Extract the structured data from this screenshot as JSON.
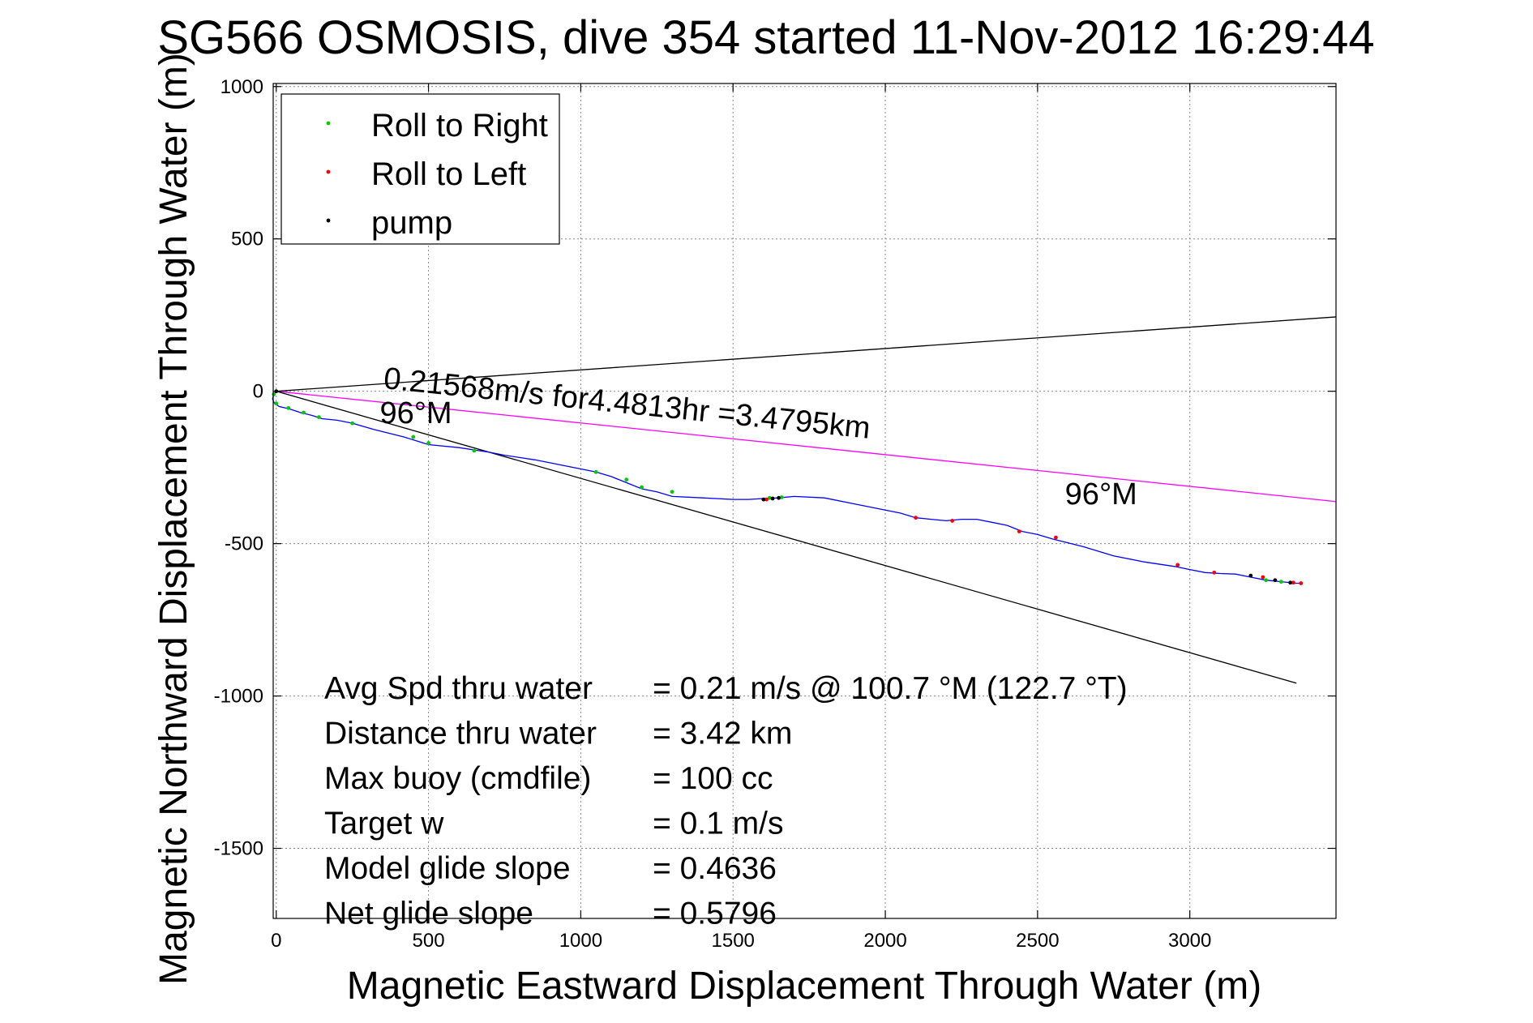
{
  "chart_data": {
    "type": "line",
    "title": "SG566 OSMOSIS, dive 354 started 11-Nov-2012 16:29:44",
    "xlabel": "Magnetic Eastward Displacement Through Water (m)",
    "ylabel": "Magnetic Northward Displacement Through Water (m)",
    "xlim": [
      -10,
      3480
    ],
    "ylim": [
      -1730,
      1010
    ],
    "xticks": [
      0,
      500,
      1000,
      1500,
      2000,
      2500,
      3000
    ],
    "yticks": [
      1000,
      500,
      0,
      -500,
      -1000,
      -1500
    ],
    "xtick_labels": [
      "0",
      "500",
      "1000",
      "1500",
      "2000",
      "2500",
      "3000"
    ],
    "ytick_labels": [
      "1000",
      "500",
      "0",
      "-500",
      "-1000",
      "-1500"
    ],
    "grid": true,
    "legend_position": "top-left",
    "legend": [
      {
        "label": "Roll to Right",
        "color": "#00cc00"
      },
      {
        "label": "Roll to Left",
        "color": "#ff0000"
      },
      {
        "label": "pump",
        "color": "#000000"
      }
    ],
    "track": {
      "color": "#0000ff",
      "x": [
        0,
        -8,
        -12,
        -6,
        10,
        30,
        50,
        80,
        120,
        150,
        200,
        250,
        320,
        420,
        500,
        600,
        700,
        750,
        850,
        950,
        1050,
        1100,
        1150,
        1200,
        1250,
        1300,
        1400,
        1500,
        1550,
        1600,
        1650,
        1700,
        1800,
        1900,
        1950,
        2000,
        2050,
        2100,
        2150,
        2200,
        2250,
        2300,
        2350,
        2400,
        2450,
        2500,
        2550,
        2650,
        2750,
        2850,
        2950,
        3000,
        3050,
        3100,
        3150,
        3200,
        3250,
        3300,
        3350,
        3360
      ],
      "y": [
        0,
        -10,
        -25,
        -40,
        -50,
        -55,
        -60,
        -70,
        -80,
        -90,
        -95,
        -105,
        -125,
        -150,
        -175,
        -185,
        -200,
        -210,
        -225,
        -245,
        -265,
        -280,
        -300,
        -320,
        -330,
        -345,
        -350,
        -355,
        -355,
        -352,
        -350,
        -345,
        -350,
        -370,
        -380,
        -390,
        -400,
        -415,
        -420,
        -425,
        -420,
        -420,
        -430,
        -440,
        -460,
        -470,
        -485,
        -510,
        -540,
        -560,
        -575,
        -585,
        -595,
        -598,
        -600,
        -610,
        -620,
        -625,
        -630,
        -630
      ]
    },
    "markers": {
      "roll_right": {
        "x": [
          -8,
          0,
          40,
          90,
          140,
          250,
          450,
          500,
          650,
          1050,
          1150,
          1200,
          1300,
          1620,
          1660,
          3250,
          3300
        ],
        "y": [
          -10,
          -40,
          -55,
          -70,
          -85,
          -105,
          -150,
          -170,
          -195,
          -265,
          -290,
          -315,
          -330,
          -350,
          -348,
          -620,
          -625
        ]
      },
      "roll_left": {
        "x": [
          1610,
          2100,
          2220,
          2440,
          2560,
          2960,
          3080,
          3240,
          3340,
          3365
        ],
        "y": [
          -355,
          -415,
          -425,
          -460,
          -480,
          -570,
          -595,
          -610,
          -628,
          -630
        ]
      },
      "pump": {
        "x": [
          0,
          1600,
          1630,
          1650,
          3200,
          3280,
          3330
        ],
        "y": [
          0,
          -355,
          -352,
          -350,
          -605,
          -620,
          -628
        ]
      }
    },
    "reference_lines": [
      {
        "name": "",
        "color": "#000000",
        "x": [
          0,
          3480
        ],
        "y": [
          0,
          244
        ]
      },
      {
        "name": "",
        "color": "#ff00ff",
        "x": [
          0,
          3480
        ],
        "y": [
          0,
          -362
        ]
      },
      {
        "name": "",
        "color": "#000000",
        "x": [
          0,
          3350
        ],
        "y": [
          0,
          -958
        ]
      }
    ],
    "annotations": [
      {
        "text": "0.21568m/s for4.4813hr =3.4795km",
        "x": 350,
        "y": 10,
        "rotation_deg": 5.9
      },
      {
        "text": "96°M",
        "x": 340,
        "y": -105,
        "rotation_deg": 0
      },
      {
        "text": "96°M",
        "x": 2590,
        "y": -370,
        "rotation_deg": 0
      }
    ],
    "stats": [
      {
        "label": "Avg Spd thru water",
        "value": "=  0.21 m/s @ 100.7 °M (122.7 °T)"
      },
      {
        "label": "Distance thru water",
        "value": "=  3.42 km"
      },
      {
        "label": "Max buoy (cmdfile)",
        "value": "= 100 cc"
      },
      {
        "label": "Target w",
        "value": "= 0.1 m/s"
      },
      {
        "label": "Model glide slope",
        "value": "= 0.4636"
      },
      {
        "label": "Net glide slope",
        "value": "= 0.5796"
      }
    ]
  }
}
